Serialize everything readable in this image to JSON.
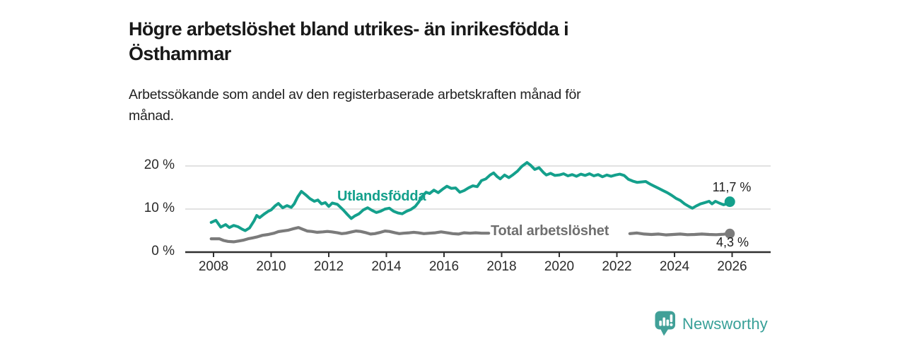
{
  "header": {
    "title_lines": [
      "Högre arbetslöshet bland utrikes- än inrikesfödda i",
      "Östhammar"
    ],
    "subtitle_lines": [
      "Arbetssökande som andel av den registerbaserade arbetskraften månad för",
      "månad."
    ]
  },
  "colors": {
    "background": "#ffffff",
    "grid": "#d8d8d8",
    "axis": "#2f2f2f",
    "tick_text": "#2b2b2b",
    "title_text": "#191919",
    "end_label_text": "#1d1d1d",
    "brand_icon": "#41a098",
    "brand_text": "#38a098"
  },
  "chart_data": {
    "type": "line",
    "title": "Högre arbetslöshet bland utrikes- än inrikesfödda i Östhammar",
    "subtitle": "Arbetssökande som andel av den registerbaserade arbetskraften månad för månad.",
    "unit": "%",
    "xlim": [
      2007,
      2027.3
    ],
    "ylim": [
      0,
      22
    ],
    "grid": "horizontal",
    "legend_position": "inline-labels",
    "y_ticks": [
      {
        "v": 0,
        "label": "0 %"
      },
      {
        "v": 10,
        "label": "10 %"
      },
      {
        "v": 20,
        "label": "20 %"
      }
    ],
    "x_ticks": [
      {
        "v": 2008,
        "label": "2008"
      },
      {
        "v": 2010,
        "label": "2010"
      },
      {
        "v": 2012,
        "label": "2012"
      },
      {
        "v": 2014,
        "label": "2014"
      },
      {
        "v": 2016,
        "label": "2016"
      },
      {
        "v": 2018,
        "label": "2018"
      },
      {
        "v": 2020,
        "label": "2020"
      },
      {
        "v": 2022,
        "label": "2022"
      },
      {
        "v": 2024,
        "label": "2024"
      },
      {
        "v": 2026,
        "label": "2026"
      }
    ],
    "series": [
      {
        "id": "utlandsfodda",
        "name": "Utlandsfödda",
        "color": "#14a08c",
        "end_value": 11.7,
        "end_value_label": "11,7 %",
        "points": [
          [
            2007.92,
            6.9
          ],
          [
            2008.08,
            7.4
          ],
          [
            2008.25,
            5.8
          ],
          [
            2008.42,
            6.4
          ],
          [
            2008.55,
            5.7
          ],
          [
            2008.7,
            6.2
          ],
          [
            2008.85,
            5.9
          ],
          [
            2009.0,
            5.3
          ],
          [
            2009.1,
            5.0
          ],
          [
            2009.25,
            5.6
          ],
          [
            2009.4,
            7.2
          ],
          [
            2009.5,
            8.5
          ],
          [
            2009.6,
            8.0
          ],
          [
            2009.75,
            8.8
          ],
          [
            2009.9,
            9.5
          ],
          [
            2010.0,
            9.8
          ],
          [
            2010.15,
            10.8
          ],
          [
            2010.25,
            11.3
          ],
          [
            2010.4,
            10.3
          ],
          [
            2010.55,
            10.8
          ],
          [
            2010.7,
            10.4
          ],
          [
            2010.8,
            11.2
          ],
          [
            2010.92,
            12.8
          ],
          [
            2011.05,
            14.1
          ],
          [
            2011.2,
            13.3
          ],
          [
            2011.35,
            12.4
          ],
          [
            2011.5,
            11.8
          ],
          [
            2011.62,
            12.1
          ],
          [
            2011.75,
            11.2
          ],
          [
            2011.88,
            11.5
          ],
          [
            2012.0,
            10.6
          ],
          [
            2012.12,
            11.4
          ],
          [
            2012.3,
            11.1
          ],
          [
            2012.5,
            9.8
          ],
          [
            2012.65,
            8.7
          ],
          [
            2012.78,
            7.8
          ],
          [
            2012.9,
            8.4
          ],
          [
            2013.05,
            8.9
          ],
          [
            2013.2,
            9.8
          ],
          [
            2013.35,
            10.3
          ],
          [
            2013.5,
            9.7
          ],
          [
            2013.65,
            9.2
          ],
          [
            2013.8,
            9.5
          ],
          [
            2013.95,
            10.0
          ],
          [
            2014.1,
            10.2
          ],
          [
            2014.25,
            9.5
          ],
          [
            2014.4,
            9.1
          ],
          [
            2014.55,
            8.9
          ],
          [
            2014.7,
            9.5
          ],
          [
            2014.85,
            9.9
          ],
          [
            2015.0,
            10.6
          ],
          [
            2015.12,
            11.6
          ],
          [
            2015.25,
            13.0
          ],
          [
            2015.38,
            13.9
          ],
          [
            2015.5,
            13.6
          ],
          [
            2015.65,
            14.4
          ],
          [
            2015.8,
            13.8
          ],
          [
            2015.95,
            14.6
          ],
          [
            2016.1,
            15.3
          ],
          [
            2016.25,
            14.8
          ],
          [
            2016.4,
            14.9
          ],
          [
            2016.55,
            13.9
          ],
          [
            2016.7,
            14.3
          ],
          [
            2016.85,
            14.9
          ],
          [
            2017.0,
            15.4
          ],
          [
            2017.15,
            15.2
          ],
          [
            2017.3,
            16.6
          ],
          [
            2017.45,
            17.0
          ],
          [
            2017.6,
            17.9
          ],
          [
            2017.72,
            18.4
          ],
          [
            2017.85,
            17.5
          ],
          [
            2017.95,
            17.0
          ],
          [
            2018.1,
            17.9
          ],
          [
            2018.25,
            17.3
          ],
          [
            2018.4,
            18.0
          ],
          [
            2018.55,
            18.8
          ],
          [
            2018.7,
            19.9
          ],
          [
            2018.88,
            20.8
          ],
          [
            2019.0,
            20.2
          ],
          [
            2019.15,
            19.2
          ],
          [
            2019.3,
            19.6
          ],
          [
            2019.45,
            18.5
          ],
          [
            2019.55,
            17.9
          ],
          [
            2019.7,
            18.3
          ],
          [
            2019.85,
            17.8
          ],
          [
            2020.0,
            17.9
          ],
          [
            2020.15,
            18.2
          ],
          [
            2020.3,
            17.7
          ],
          [
            2020.45,
            18.0
          ],
          [
            2020.6,
            17.6
          ],
          [
            2020.75,
            18.1
          ],
          [
            2020.9,
            17.8
          ],
          [
            2021.05,
            18.2
          ],
          [
            2021.2,
            17.7
          ],
          [
            2021.35,
            18.0
          ],
          [
            2021.5,
            17.5
          ],
          [
            2021.65,
            17.9
          ],
          [
            2021.8,
            17.6
          ],
          [
            2021.95,
            17.9
          ],
          [
            2022.1,
            18.1
          ],
          [
            2022.25,
            17.8
          ],
          [
            2022.4,
            16.9
          ],
          [
            2022.55,
            16.5
          ],
          [
            2022.7,
            16.2
          ],
          [
            2022.85,
            16.3
          ],
          [
            2023.0,
            16.4
          ],
          [
            2023.15,
            15.8
          ],
          [
            2023.3,
            15.3
          ],
          [
            2023.45,
            14.8
          ],
          [
            2023.6,
            14.3
          ],
          [
            2023.75,
            13.8
          ],
          [
            2023.9,
            13.2
          ],
          [
            2024.05,
            12.5
          ],
          [
            2024.2,
            12.0
          ],
          [
            2024.35,
            11.2
          ],
          [
            2024.5,
            10.6
          ],
          [
            2024.62,
            10.2
          ],
          [
            2024.75,
            10.7
          ],
          [
            2024.9,
            11.2
          ],
          [
            2025.05,
            11.5
          ],
          [
            2025.2,
            11.8
          ],
          [
            2025.3,
            11.2
          ],
          [
            2025.42,
            11.8
          ],
          [
            2025.55,
            11.4
          ],
          [
            2025.7,
            11.0
          ],
          [
            2025.8,
            11.2
          ],
          [
            2025.92,
            11.7
          ]
        ]
      },
      {
        "id": "total-arbetsloshet",
        "name": "Total arbetslöshet",
        "color": "#7b7b7b",
        "label_color": "#6f6f6f",
        "end_value": 4.3,
        "end_value_label": "4,3 %",
        "points": [
          [
            2007.92,
            3.1
          ],
          [
            2008.2,
            3.1
          ],
          [
            2008.35,
            2.7
          ],
          [
            2008.5,
            2.5
          ],
          [
            2008.7,
            2.4
          ],
          [
            2008.9,
            2.6
          ],
          [
            2009.05,
            2.8
          ],
          [
            2009.2,
            3.1
          ],
          [
            2009.35,
            3.3
          ],
          [
            2009.5,
            3.5
          ],
          [
            2009.7,
            3.9
          ],
          [
            2009.9,
            4.1
          ],
          [
            2010.1,
            4.4
          ],
          [
            2010.25,
            4.75
          ],
          [
            2010.4,
            4.9
          ],
          [
            2010.6,
            5.1
          ],
          [
            2010.75,
            5.4
          ],
          [
            2010.95,
            5.7
          ],
          [
            2011.1,
            5.3
          ],
          [
            2011.25,
            4.9
          ],
          [
            2011.4,
            4.8
          ],
          [
            2011.6,
            4.6
          ],
          [
            2011.8,
            4.7
          ],
          [
            2011.95,
            4.8
          ],
          [
            2012.1,
            4.7
          ],
          [
            2012.3,
            4.5
          ],
          [
            2012.45,
            4.3
          ],
          [
            2012.6,
            4.4
          ],
          [
            2012.8,
            4.7
          ],
          [
            2012.95,
            4.9
          ],
          [
            2013.1,
            4.8
          ],
          [
            2013.3,
            4.5
          ],
          [
            2013.45,
            4.2
          ],
          [
            2013.6,
            4.3
          ],
          [
            2013.8,
            4.6
          ],
          [
            2013.95,
            4.9
          ],
          [
            2014.1,
            4.8
          ],
          [
            2014.3,
            4.5
          ],
          [
            2014.45,
            4.3
          ],
          [
            2014.6,
            4.4
          ],
          [
            2014.8,
            4.5
          ],
          [
            2014.95,
            4.6
          ],
          [
            2015.1,
            4.5
          ],
          [
            2015.3,
            4.3
          ],
          [
            2015.5,
            4.4
          ],
          [
            2015.7,
            4.5
          ],
          [
            2015.9,
            4.7
          ],
          [
            2016.1,
            4.5
          ],
          [
            2016.3,
            4.3
          ],
          [
            2016.5,
            4.2
          ],
          [
            2016.7,
            4.5
          ],
          [
            2016.9,
            4.4
          ],
          [
            2017.1,
            4.5
          ],
          [
            2017.3,
            4.4
          ],
          [
            2017.55,
            4.4
          ],
          [
            2017.7,
            null
          ],
          [
            2022.45,
            4.3
          ],
          [
            2022.7,
            4.45
          ],
          [
            2022.95,
            4.2
          ],
          [
            2023.2,
            4.1
          ],
          [
            2023.45,
            4.2
          ],
          [
            2023.7,
            4.0
          ],
          [
            2023.95,
            4.1
          ],
          [
            2024.2,
            4.2
          ],
          [
            2024.45,
            4.05
          ],
          [
            2024.7,
            4.1
          ],
          [
            2024.95,
            4.2
          ],
          [
            2025.2,
            4.1
          ],
          [
            2025.45,
            4.05
          ],
          [
            2025.7,
            4.15
          ],
          [
            2025.92,
            4.3
          ]
        ]
      }
    ]
  },
  "footer": {
    "brand": "Newsworthy"
  }
}
